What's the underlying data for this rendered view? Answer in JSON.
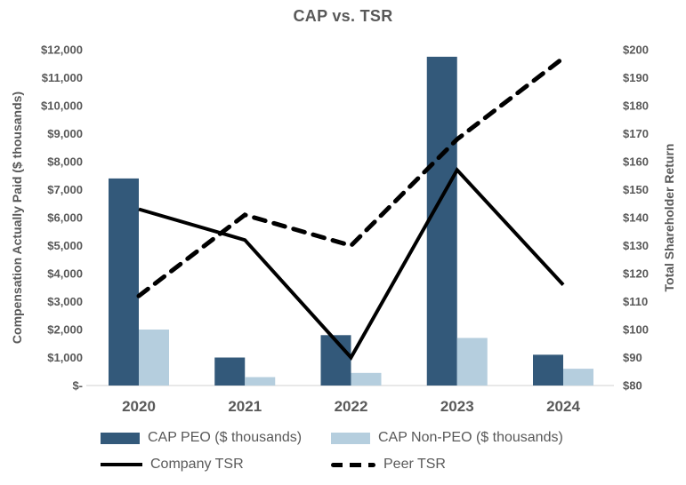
{
  "title": "CAP vs. TSR",
  "colors": {
    "cap_peo_bar": "#33597A",
    "cap_non_peo_bar": "#B5CEDE",
    "tsr_lines": "#000000",
    "text_gray": "#595959",
    "baseline_gray": "#D9D9D9"
  },
  "legend": {
    "items": [
      {
        "label": "CAP PEO ($ thousands)",
        "swatch": "bar-dark-blue"
      },
      {
        "label": "CAP Non-PEO ($ thousands)",
        "swatch": "bar-light-blue"
      },
      {
        "label": "Company TSR",
        "swatch": "solid-black-line"
      },
      {
        "label": "Peer TSR",
        "swatch": "dashed-black-line"
      }
    ]
  },
  "chart_data": {
    "type": "bar",
    "subtype": "combo-bar-line-dual-axis",
    "title": "CAP vs. TSR",
    "categories": [
      "2020",
      "2021",
      "2022",
      "2023",
      "2024"
    ],
    "series": [
      {
        "name": "CAP PEO ($ thousands)",
        "type": "bar",
        "axis": "left",
        "color": "#33597A",
        "values": [
          7400,
          1000,
          1800,
          11750,
          1100
        ]
      },
      {
        "name": "CAP Non-PEO ($ thousands)",
        "type": "bar",
        "axis": "left",
        "color": "#B5CEDE",
        "values": [
          2000,
          300,
          450,
          1700,
          600
        ]
      },
      {
        "name": "Company TSR",
        "type": "line",
        "dash": "solid",
        "axis": "right",
        "color": "#000000",
        "values": [
          143,
          132,
          90,
          157,
          116
        ]
      },
      {
        "name": "Peer TSR",
        "type": "line",
        "dash": "dashed",
        "axis": "right",
        "color": "#000000",
        "values": [
          112,
          141,
          130,
          168,
          197
        ]
      }
    ],
    "left_axis": {
      "label": "Compensation Actually Paid ($ thousands)",
      "min": 0,
      "max": 12000,
      "step": 1000,
      "tick_labels": [
        "$-",
        "$1,000",
        "$2,000",
        "$3,000",
        "$4,000",
        "$5,000",
        "$6,000",
        "$7,000",
        "$8,000",
        "$9,000",
        "$10,000",
        "$11,000",
        "$12,000"
      ]
    },
    "right_axis": {
      "label": "Total Shareholder Return",
      "min": 80,
      "max": 200,
      "step": 10,
      "tick_labels": [
        "$80",
        "$90",
        "$100",
        "$110",
        "$120",
        "$130",
        "$140",
        "$150",
        "$160",
        "$170",
        "$180",
        "$190",
        "$200"
      ]
    },
    "grid": "off",
    "legend_position": "bottom"
  }
}
